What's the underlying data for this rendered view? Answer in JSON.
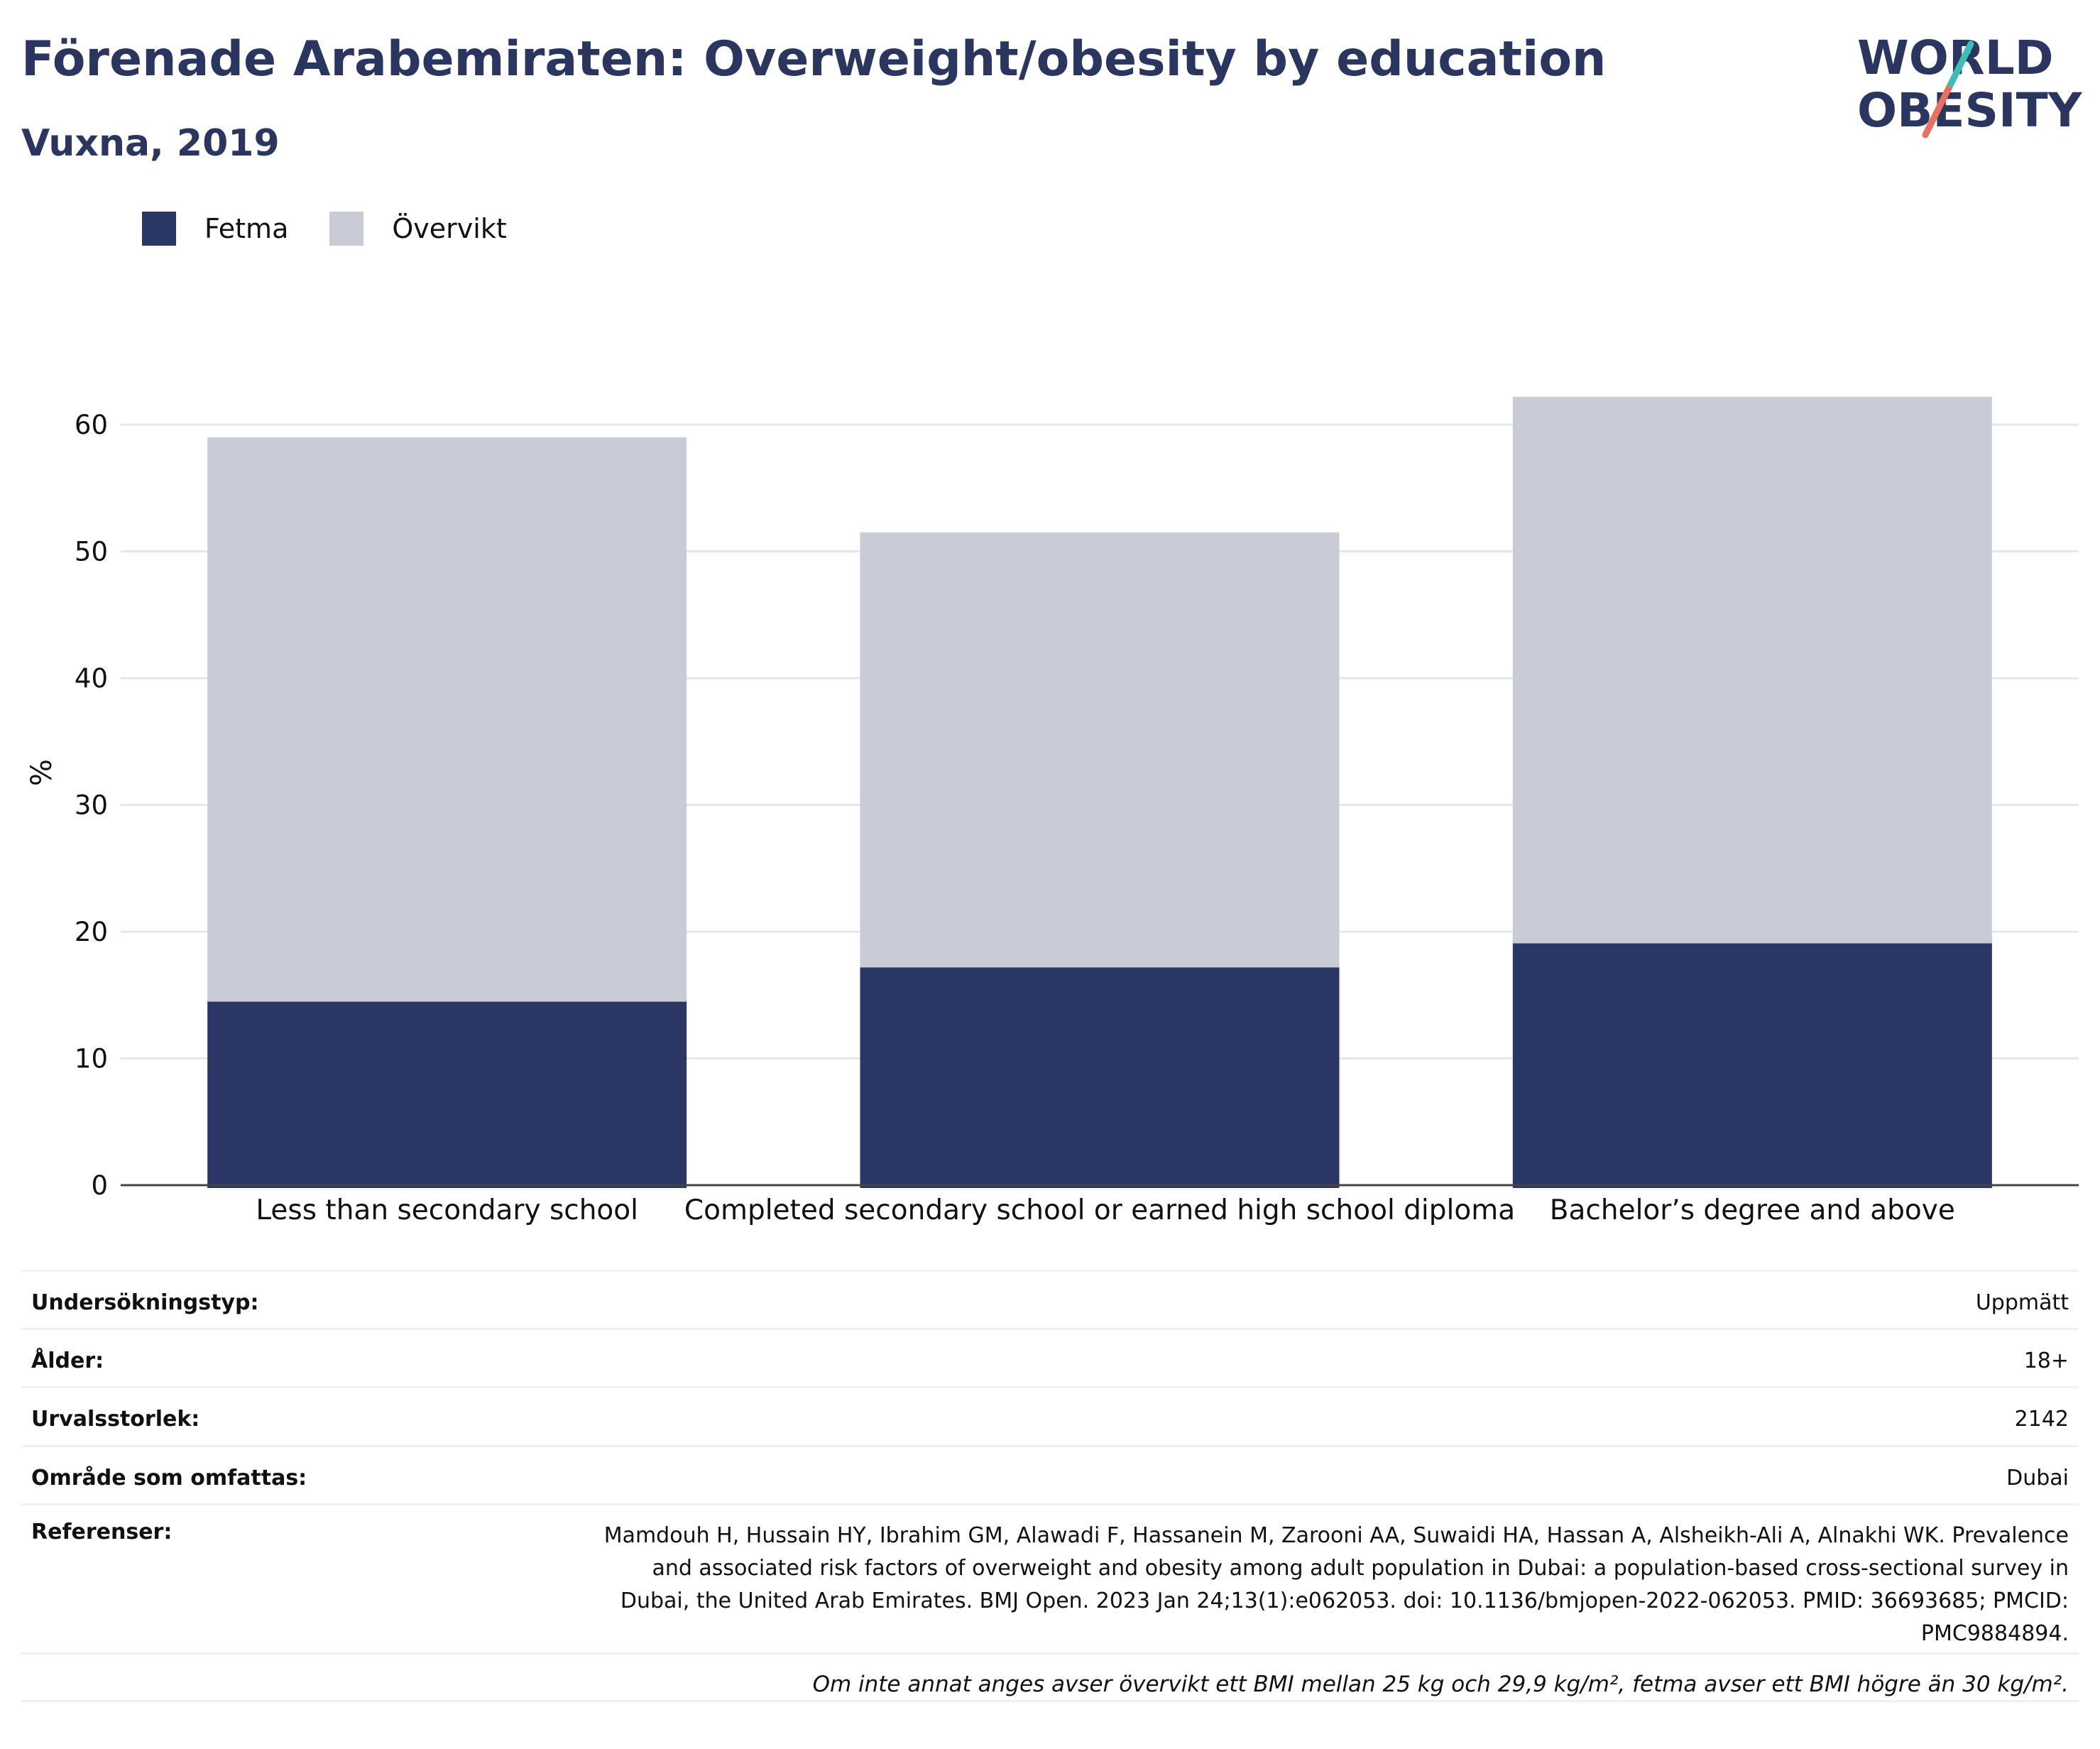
{
  "header": {
    "title": "Förenade Arabemiraten: Overweight/obesity by education",
    "subtitle": "Vuxna, 2019"
  },
  "logo": {
    "line1": "WORLD",
    "line2": "OBESITY"
  },
  "legend": [
    {
      "label": "Fetma",
      "color": "#2a3664"
    },
    {
      "label": "Övervikt",
      "color": "#c9cbd7"
    }
  ],
  "chart_data": {
    "type": "bar",
    "stacked": true,
    "categories": [
      "Less than secondary school",
      "Completed secondary school or earned  high school diploma",
      "Bachelor’s degree and above"
    ],
    "series": [
      {
        "name": "Fetma",
        "values": [
          14.7,
          17.4,
          19.3
        ],
        "color": "#2a3664"
      },
      {
        "name": "Övervikt",
        "values": [
          44.3,
          34.1,
          42.9
        ],
        "color": "#c9cbd7"
      }
    ],
    "ylabel": "%",
    "ylim": [
      0,
      62
    ],
    "yticks": [
      0,
      10,
      20,
      30,
      40,
      50,
      60
    ],
    "grid": true
  },
  "info": [
    {
      "key": "Undersökningstyp:",
      "value": "Uppmätt"
    },
    {
      "key": "Ålder:",
      "value": "18+"
    },
    {
      "key": "Urvalsstorlek:",
      "value": "2142"
    },
    {
      "key": "Område som omfattas:",
      "value": "Dubai"
    },
    {
      "key": "Referenser:",
      "value": "Mamdouh H, Hussain HY, Ibrahim GM, Alawadi F, Hassanein M, Zarooni AA, Suwaidi HA, Hassan A, Alsheikh-Ali A, Alnakhi WK. Prevalence and associated risk factors of overweight and obesity among adult population in Dubai: a population-based cross-sectional survey in Dubai, the United Arab Emirates. BMJ Open. 2023 Jan 24;13(1):e062053. doi: 10.1136/bmjopen-2022-062053. PMID: 36693685; PMCID: PMC9884894."
    }
  ],
  "footnote": "Om inte annat anges avser övervikt ett BMI mellan 25 kg och 29,9 kg/m², fetma avser ett BMI högre än 30 kg/m²."
}
